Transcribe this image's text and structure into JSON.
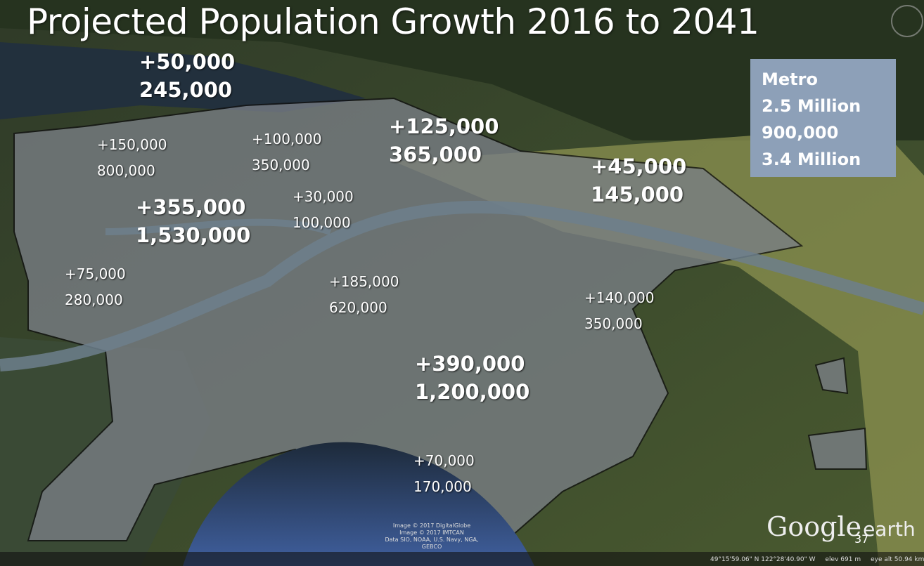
{
  "title": "Projected Population Growth 2016 to 2041",
  "regions": [
    {
      "growth": "+50,000",
      "population": "245,000"
    },
    {
      "growth": "+150,000",
      "population": "800,000"
    },
    {
      "growth": "+100,000",
      "population": "350,000"
    },
    {
      "growth": "+125,000",
      "population": "365,000"
    },
    {
      "growth": "+45,000",
      "population": "145,000"
    },
    {
      "growth": "+30,000",
      "population": "100,000"
    },
    {
      "growth": "+355,000",
      "population": "1,530,000"
    },
    {
      "growth": "+75,000",
      "population": "280,000"
    },
    {
      "growth": "+185,000",
      "population": "620,000"
    },
    {
      "growth": "+140,000",
      "population": "350,000"
    },
    {
      "growth": "+390,000",
      "population": "1,200,000"
    },
    {
      "growth": "+70,000",
      "population": "170,000"
    }
  ],
  "metro": {
    "label": "Metro",
    "lines": [
      "2.5 Million",
      "900,000",
      "3.4 Million"
    ]
  },
  "credits": [
    "Image © 2017 DigitalGlobe",
    "Image © 2017 IMTCAN",
    "Data SIO, NOAA, U.S. Navy, NGA, GEBCO"
  ],
  "logo": {
    "brand": "Google",
    "product": "earth"
  },
  "page_number": "37",
  "status": {
    "coordinates": "49°15'59.06\" N 122°28'40.90\" W",
    "elevation": "elev 691 m",
    "eye_altitude": "eye alt 50.94 km"
  }
}
